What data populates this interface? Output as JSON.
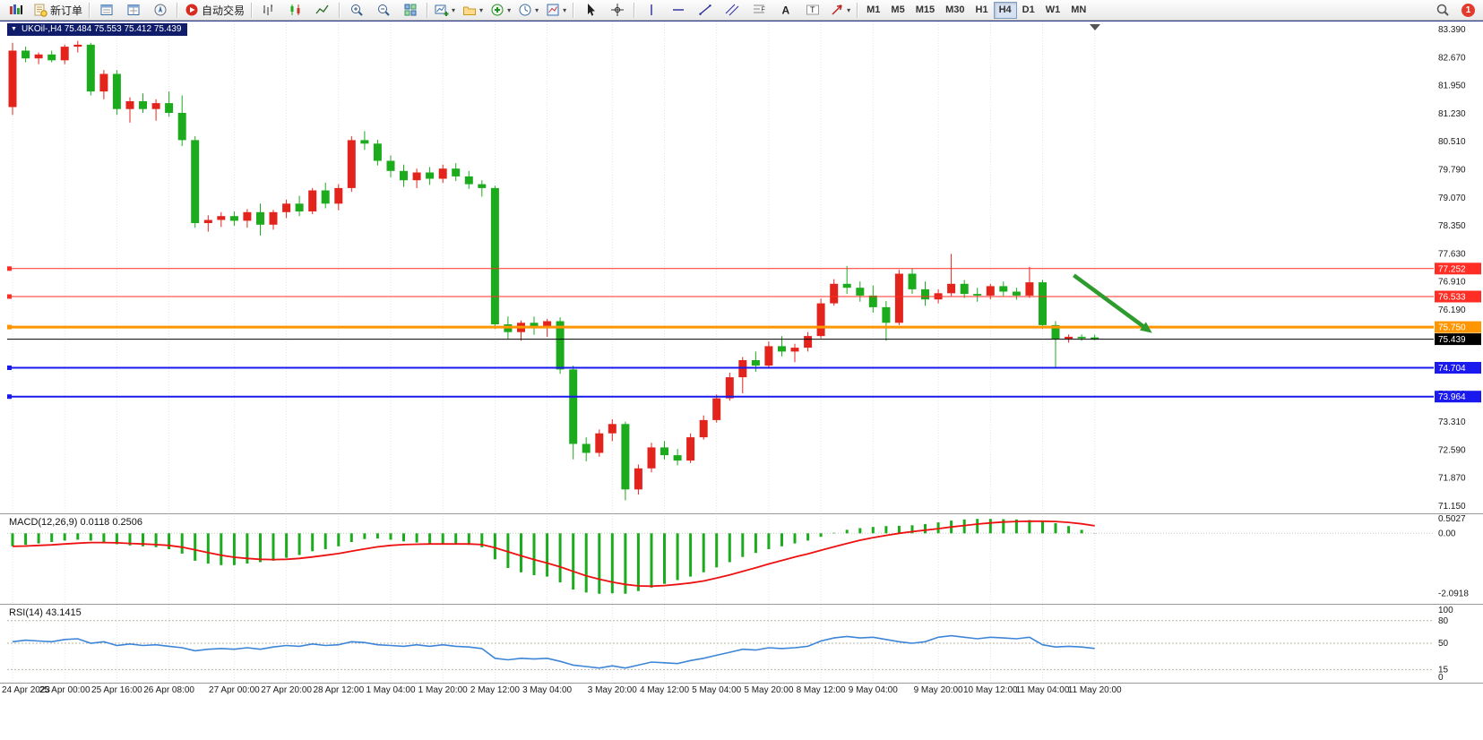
{
  "toolbar": {
    "new_order_label": "新订单",
    "auto_trading_label": "自动交易",
    "notification_count": "1",
    "timeframes": [
      "M1",
      "M5",
      "M15",
      "M30",
      "H1",
      "H4",
      "D1",
      "W1",
      "MN"
    ],
    "active_timeframe": "H4",
    "items": [
      {
        "name": "terminal-logo-icon",
        "icon": "logo",
        "interactable": false
      },
      {
        "name": "new-order-button",
        "icon": "order",
        "label": "新订单"
      },
      {
        "sep": true
      },
      {
        "name": "market-watch-button",
        "icon": "win-list"
      },
      {
        "name": "data-window-button",
        "icon": "win-data"
      },
      {
        "name": "navigator-button",
        "icon": "nav-circle"
      },
      {
        "sep": true
      },
      {
        "name": "autotrading-button",
        "icon": "play-red",
        "label": "自动交易"
      },
      {
        "sep": true
      },
      {
        "name": "bar-chart-button",
        "icon": "bars"
      },
      {
        "name": "candle-chart-button",
        "icon": "candles"
      },
      {
        "name": "line-chart-button",
        "icon": "polyline"
      },
      {
        "sep": true
      },
      {
        "name": "zoom-in-button",
        "icon": "zoom-in"
      },
      {
        "name": "zoom-out-button",
        "icon": "zoom-out"
      },
      {
        "name": "tile-windows-button",
        "icon": "grid"
      },
      {
        "sep": true
      },
      {
        "name": "new-chart-dropdown",
        "icon": "chart-plus",
        "dropdown": true
      },
      {
        "name": "profiles-dropdown",
        "icon": "folder",
        "dropdown": true
      },
      {
        "name": "indicators-dropdown",
        "icon": "indicator-plus",
        "dropdown": true
      },
      {
        "name": "periods-dropdown",
        "icon": "clock",
        "dropdown": true
      },
      {
        "name": "templates-dropdown",
        "icon": "template",
        "dropdown": true
      },
      {
        "sep": true
      },
      {
        "name": "cursor-button",
        "icon": "cursor"
      },
      {
        "name": "crosshair-button",
        "icon": "crosshair"
      },
      {
        "sep": true
      },
      {
        "name": "vertical-line-tool",
        "icon": "vline"
      },
      {
        "name": "horizontal-line-tool",
        "icon": "hline"
      },
      {
        "name": "trendline-tool",
        "icon": "tline"
      },
      {
        "name": "channel-tool",
        "icon": "channel"
      },
      {
        "name": "fibonacci-tool",
        "icon": "fibo"
      },
      {
        "name": "text-tool",
        "icon": "text"
      },
      {
        "name": "label-tool",
        "icon": "label"
      },
      {
        "name": "arrows-dropdown",
        "icon": "arrows",
        "dropdown": true
      },
      {
        "sep": true
      }
    ]
  },
  "chart_data": {
    "type": "candlestick",
    "symbol": "UKOil-",
    "timeframe": "H4",
    "title_text": "UKOil-,H4  75.484 75.553 75.412 75.439",
    "ohlc": {
      "open": "75.484",
      "high": "75.553",
      "low": "75.412",
      "close": "75.439"
    },
    "colors": {
      "bull": "#e3241d",
      "bear": "#1cab1c",
      "grid": "#e3e3e3"
    },
    "price_axis": {
      "max": 83.597,
      "min": 71.012,
      "ticks": [
        "83.390",
        "82.670",
        "81.950",
        "81.230",
        "80.510",
        "79.790",
        "79.070",
        "78.350",
        "77.630",
        "76.910",
        "76.190",
        "75.470",
        "74.750",
        "74.030",
        "73.310",
        "72.590",
        "71.870",
        "71.150"
      ]
    },
    "x_labels": [
      "24 Apr 2023",
      "25 Apr 00:00",
      "25 Apr 16:00",
      "26 Apr 08:00",
      "27 Apr 00:00",
      "27 Apr 20:00",
      "28 Apr 12:00",
      "1 May 04:00",
      "1 May 20:00",
      "2 May 12:00",
      "3 May 04:00",
      "3 May 20:00",
      "4 May 12:00",
      "5 May 04:00",
      "5 May 20:00",
      "8 May 12:00",
      "9 May 04:00",
      "9 May 20:00",
      "10 May 12:00",
      "11 May 04:00",
      "11 May 20:00"
    ],
    "x_label_bars": [
      0,
      4,
      8,
      12,
      17,
      21,
      25,
      29,
      33,
      37,
      41,
      46,
      50,
      54,
      58,
      62,
      66,
      71,
      75,
      79,
      83
    ],
    "candles": [
      [
        81.4,
        83.05,
        81.2,
        82.85
      ],
      [
        82.85,
        82.95,
        82.55,
        82.65
      ],
      [
        82.65,
        82.8,
        82.5,
        82.75
      ],
      [
        82.75,
        82.85,
        82.55,
        82.6
      ],
      [
        82.6,
        83.0,
        82.5,
        82.95
      ],
      [
        82.95,
        83.1,
        82.8,
        83.0
      ],
      [
        83.0,
        83.05,
        81.7,
        81.8
      ],
      [
        81.8,
        82.35,
        81.6,
        82.25
      ],
      [
        82.25,
        82.35,
        81.2,
        81.35
      ],
      [
        81.35,
        81.65,
        81.0,
        81.55
      ],
      [
        81.55,
        81.75,
        81.25,
        81.35
      ],
      [
        81.35,
        81.6,
        81.05,
        81.5
      ],
      [
        81.5,
        81.8,
        81.15,
        81.25
      ],
      [
        81.25,
        81.7,
        80.4,
        80.55
      ],
      [
        80.55,
        80.65,
        78.3,
        78.42
      ],
      [
        78.42,
        78.62,
        78.2,
        78.5
      ],
      [
        78.5,
        78.7,
        78.32,
        78.6
      ],
      [
        78.6,
        78.72,
        78.35,
        78.48
      ],
      [
        78.48,
        78.78,
        78.3,
        78.7
      ],
      [
        78.7,
        78.92,
        78.1,
        78.38
      ],
      [
        78.38,
        78.76,
        78.25,
        78.7
      ],
      [
        78.7,
        79.02,
        78.55,
        78.92
      ],
      [
        78.92,
        79.12,
        78.6,
        78.72
      ],
      [
        78.72,
        79.32,
        78.65,
        79.26
      ],
      [
        79.26,
        79.46,
        78.8,
        78.92
      ],
      [
        78.92,
        79.42,
        78.75,
        79.32
      ],
      [
        79.32,
        80.65,
        79.22,
        80.55
      ],
      [
        80.55,
        80.78,
        80.3,
        80.46
      ],
      [
        80.46,
        80.56,
        79.9,
        80.02
      ],
      [
        80.02,
        80.16,
        79.6,
        79.76
      ],
      [
        79.76,
        79.92,
        79.35,
        79.52
      ],
      [
        79.52,
        79.82,
        79.32,
        79.72
      ],
      [
        79.72,
        79.86,
        79.4,
        79.56
      ],
      [
        79.56,
        79.92,
        79.45,
        79.82
      ],
      [
        79.82,
        79.96,
        79.5,
        79.62
      ],
      [
        79.62,
        79.76,
        79.3,
        79.42
      ],
      [
        79.42,
        79.52,
        79.1,
        79.32
      ],
      [
        79.32,
        79.38,
        75.7,
        75.82
      ],
      [
        75.82,
        76.02,
        75.45,
        75.62
      ],
      [
        75.62,
        75.92,
        75.4,
        75.86
      ],
      [
        75.86,
        76.02,
        75.55,
        75.72
      ],
      [
        75.72,
        75.96,
        75.5,
        75.9
      ],
      [
        75.9,
        76.0,
        74.55,
        74.66
      ],
      [
        74.66,
        74.76,
        72.35,
        72.75
      ],
      [
        72.75,
        72.92,
        72.3,
        72.52
      ],
      [
        72.52,
        73.12,
        72.42,
        73.02
      ],
      [
        73.02,
        73.38,
        72.82,
        73.26
      ],
      [
        73.26,
        73.32,
        71.3,
        71.58
      ],
      [
        71.58,
        72.22,
        71.45,
        72.12
      ],
      [
        72.12,
        72.78,
        72.02,
        72.66
      ],
      [
        72.66,
        72.82,
        72.35,
        72.46
      ],
      [
        72.46,
        72.62,
        72.2,
        72.32
      ],
      [
        72.32,
        73.02,
        72.26,
        72.92
      ],
      [
        72.92,
        73.48,
        72.86,
        73.36
      ],
      [
        73.36,
        74.02,
        73.3,
        73.92
      ],
      [
        73.92,
        74.58,
        73.86,
        74.46
      ],
      [
        74.46,
        74.98,
        74.05,
        74.9
      ],
      [
        74.9,
        75.12,
        74.6,
        74.76
      ],
      [
        74.76,
        75.38,
        74.7,
        75.26
      ],
      [
        75.26,
        75.52,
        75.0,
        75.12
      ],
      [
        75.12,
        75.32,
        74.85,
        75.22
      ],
      [
        75.22,
        75.62,
        75.12,
        75.52
      ],
      [
        75.52,
        76.48,
        75.46,
        76.36
      ],
      [
        76.36,
        76.98,
        76.3,
        76.86
      ],
      [
        76.86,
        77.32,
        76.6,
        76.76
      ],
      [
        76.76,
        76.92,
        76.4,
        76.56
      ],
      [
        76.56,
        76.82,
        76.12,
        76.26
      ],
      [
        76.26,
        76.42,
        75.4,
        75.86
      ],
      [
        75.86,
        77.22,
        75.8,
        77.12
      ],
      [
        77.12,
        77.26,
        76.6,
        76.72
      ],
      [
        76.72,
        76.92,
        76.3,
        76.46
      ],
      [
        76.46,
        76.72,
        76.36,
        76.62
      ],
      [
        76.62,
        77.63,
        76.55,
        76.86
      ],
      [
        76.86,
        76.96,
        76.5,
        76.6
      ],
      [
        76.6,
        76.76,
        76.4,
        76.56
      ],
      [
        76.56,
        76.86,
        76.46,
        76.8
      ],
      [
        76.8,
        76.92,
        76.55,
        76.66
      ],
      [
        76.66,
        76.76,
        76.45,
        76.56
      ],
      [
        76.56,
        77.3,
        76.5,
        76.9
      ],
      [
        76.9,
        76.96,
        75.7,
        75.8
      ],
      [
        75.8,
        75.9,
        74.7,
        75.45
      ],
      [
        75.45,
        75.56,
        75.35,
        75.5
      ],
      [
        75.5,
        75.56,
        75.4,
        75.46
      ],
      [
        75.484,
        75.553,
        75.412,
        75.439
      ]
    ],
    "h_lines": [
      {
        "price": 77.252,
        "label": "77.252",
        "color": "#ff2d23",
        "width": 1
      },
      {
        "price": 76.533,
        "label": "76.533",
        "color": "#ff2d23",
        "width": 1
      },
      {
        "price": 75.75,
        "label": "75.750",
        "color": "#ff9500",
        "width": 3
      },
      {
        "price": 74.704,
        "label": "74.704",
        "color": "#1a1aee",
        "width": 2
      },
      {
        "price": 73.964,
        "label": "73.964",
        "color": "#1a1aee",
        "width": 2
      }
    ],
    "current_price": {
      "price": 75.439,
      "label": "75.439",
      "color": "#000000"
    },
    "arrow": {
      "from_bar": 81.4,
      "from_price": 77.08,
      "to_bar": 87.4,
      "to_price": 75.6,
      "color": "#2e9b2e"
    },
    "macd": {
      "label": "MACD(12,26,9) 0.0118 0.2506",
      "axis_labels": [
        "0.5027",
        "0.00",
        "-2.0918"
      ],
      "axis_values": [
        0.5027,
        0,
        -2.0918
      ],
      "vmax": 0.63,
      "vmin": -2.38,
      "hist_color": "#1cab1c",
      "signal_color": "#ee1111",
      "histogram": [
        -0.45,
        -0.4,
        -0.35,
        -0.3,
        -0.25,
        -0.22,
        -0.25,
        -0.3,
        -0.38,
        -0.42,
        -0.45,
        -0.48,
        -0.55,
        -0.7,
        -0.95,
        -1.05,
        -1.1,
        -1.1,
        -1.05,
        -1.0,
        -0.95,
        -0.85,
        -0.75,
        -0.62,
        -0.55,
        -0.45,
        -0.3,
        -0.2,
        -0.18,
        -0.22,
        -0.28,
        -0.32,
        -0.35,
        -0.35,
        -0.36,
        -0.4,
        -0.48,
        -0.9,
        -1.2,
        -1.35,
        -1.45,
        -1.5,
        -1.7,
        -1.95,
        -2.05,
        -2.09,
        -2.08,
        -2.09,
        -2.0,
        -1.88,
        -1.75,
        -1.62,
        -1.5,
        -1.35,
        -1.18,
        -1.0,
        -0.82,
        -0.68,
        -0.55,
        -0.45,
        -0.35,
        -0.25,
        -0.12,
        0.02,
        0.12,
        0.18,
        0.22,
        0.25,
        0.26,
        0.28,
        0.32,
        0.38,
        0.44,
        0.48,
        0.5,
        0.5,
        0.49,
        0.48,
        0.46,
        0.42,
        0.35,
        0.25,
        0.12,
        0.01
      ],
      "signal": [
        -0.45,
        -0.44,
        -0.42,
        -0.4,
        -0.37,
        -0.34,
        -0.32,
        -0.32,
        -0.33,
        -0.35,
        -0.37,
        -0.39,
        -0.42,
        -0.48,
        -0.57,
        -0.67,
        -0.76,
        -0.83,
        -0.87,
        -0.9,
        -0.91,
        -0.9,
        -0.87,
        -0.82,
        -0.76,
        -0.7,
        -0.62,
        -0.54,
        -0.47,
        -0.42,
        -0.39,
        -0.38,
        -0.37,
        -0.37,
        -0.37,
        -0.37,
        -0.39,
        -0.5,
        -0.64,
        -0.78,
        -0.91,
        -1.03,
        -1.16,
        -1.32,
        -1.47,
        -1.59,
        -1.69,
        -1.77,
        -1.82,
        -1.83,
        -1.81,
        -1.77,
        -1.72,
        -1.65,
        -1.55,
        -1.44,
        -1.32,
        -1.19,
        -1.06,
        -0.94,
        -0.82,
        -0.71,
        -0.59,
        -0.47,
        -0.35,
        -0.24,
        -0.15,
        -0.07,
        0.0,
        0.06,
        0.11,
        0.16,
        0.22,
        0.27,
        0.32,
        0.36,
        0.39,
        0.41,
        0.42,
        0.42,
        0.41,
        0.38,
        0.33,
        0.26
      ]
    },
    "rsi": {
      "label": "RSI(14) 43.1415",
      "axis_labels": [
        "100",
        "80",
        "50",
        "15",
        "0"
      ],
      "levels": [
        100,
        80,
        50,
        15,
        0
      ],
      "dashed_levels": [
        80,
        50,
        15
      ],
      "line_color": "#3d85d8",
      "vmax": 100,
      "vmin": 0,
      "values": [
        52,
        54,
        53,
        52,
        55,
        56,
        50,
        52,
        47,
        49,
        47,
        48,
        46,
        44,
        40,
        42,
        43,
        42,
        44,
        42,
        45,
        47,
        46,
        49,
        47,
        48,
        52,
        51,
        48,
        47,
        46,
        48,
        46,
        48,
        46,
        45,
        43,
        30,
        28,
        30,
        29,
        30,
        26,
        21,
        19,
        17,
        20,
        17,
        21,
        25,
        24,
        23,
        27,
        30,
        34,
        38,
        42,
        41,
        44,
        43,
        44,
        46,
        53,
        57,
        59,
        57,
        58,
        55,
        52,
        50,
        52,
        58,
        60,
        58,
        56,
        58,
        57,
        56,
        58,
        48,
        45,
        46,
        45,
        43.14
      ]
    }
  }
}
